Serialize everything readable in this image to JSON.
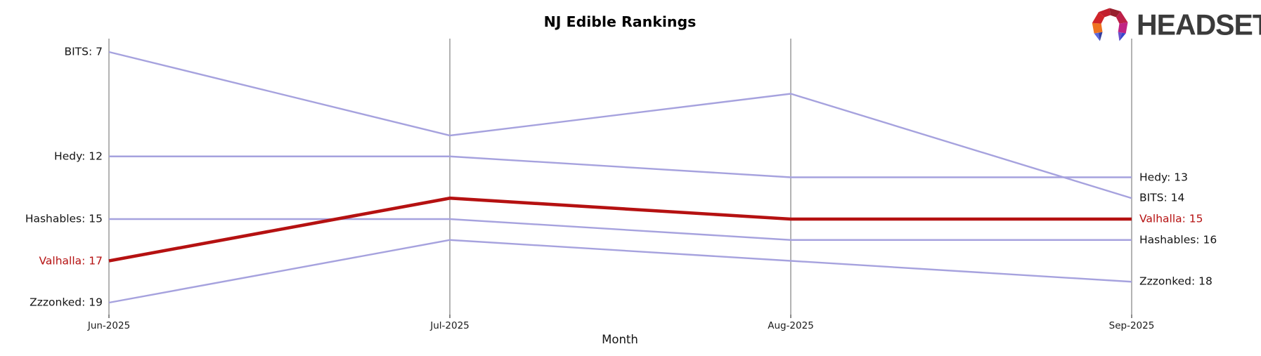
{
  "branding": {
    "logo_text": "HEADSET",
    "logo_icon": "headset-faceted-ring-icon"
  },
  "chart_data": {
    "type": "line",
    "variant": "bump-ranking",
    "title": "NJ Edible Rankings",
    "xlabel": "Month",
    "categories": [
      "Jun-2025",
      "Jul-2025",
      "Aug-2025",
      "Sep-2025"
    ],
    "y_axis": {
      "kind": "rank",
      "direction": "inverted-lower-is-better",
      "top_rank": 7,
      "bottom_rank": 19
    },
    "grid": "vertical-only",
    "legend": "none-endpoint-labels-instead",
    "series": [
      {
        "name": "BITS",
        "values": [
          7,
          11,
          9,
          14
        ],
        "color": "#a6a2de",
        "emphasis": false,
        "label_left": "BITS: 7",
        "label_right": "BITS: 14"
      },
      {
        "name": "Hedy",
        "values": [
          12,
          12,
          13,
          13
        ],
        "color": "#a6a2de",
        "emphasis": false,
        "label_left": "Hedy: 12",
        "label_right": "Hedy: 13"
      },
      {
        "name": "Hashables",
        "values": [
          15,
          15,
          16,
          16
        ],
        "color": "#a6a2de",
        "emphasis": false,
        "label_left": "Hashables: 15",
        "label_right": "Hashables: 16"
      },
      {
        "name": "Valhalla",
        "values": [
          17,
          14,
          15,
          15
        ],
        "color": "#b51111",
        "emphasis": true,
        "label_left": "Valhalla: 17",
        "label_right": "Valhalla: 15"
      },
      {
        "name": "Zzzonked",
        "values": [
          19,
          16,
          17,
          18
        ],
        "color": "#a6a2de",
        "emphasis": false,
        "label_left": "Zzzonked: 19",
        "label_right": "Zzzonked: 18"
      }
    ],
    "style": {
      "line_color_default": "#a6a2de",
      "line_color_emphasis": "#b51111",
      "label_color": "#141414",
      "emphasis_label_color": "#b51111",
      "grid_color": "#b3b3b3",
      "tick_color": "#3c3c3c"
    }
  }
}
